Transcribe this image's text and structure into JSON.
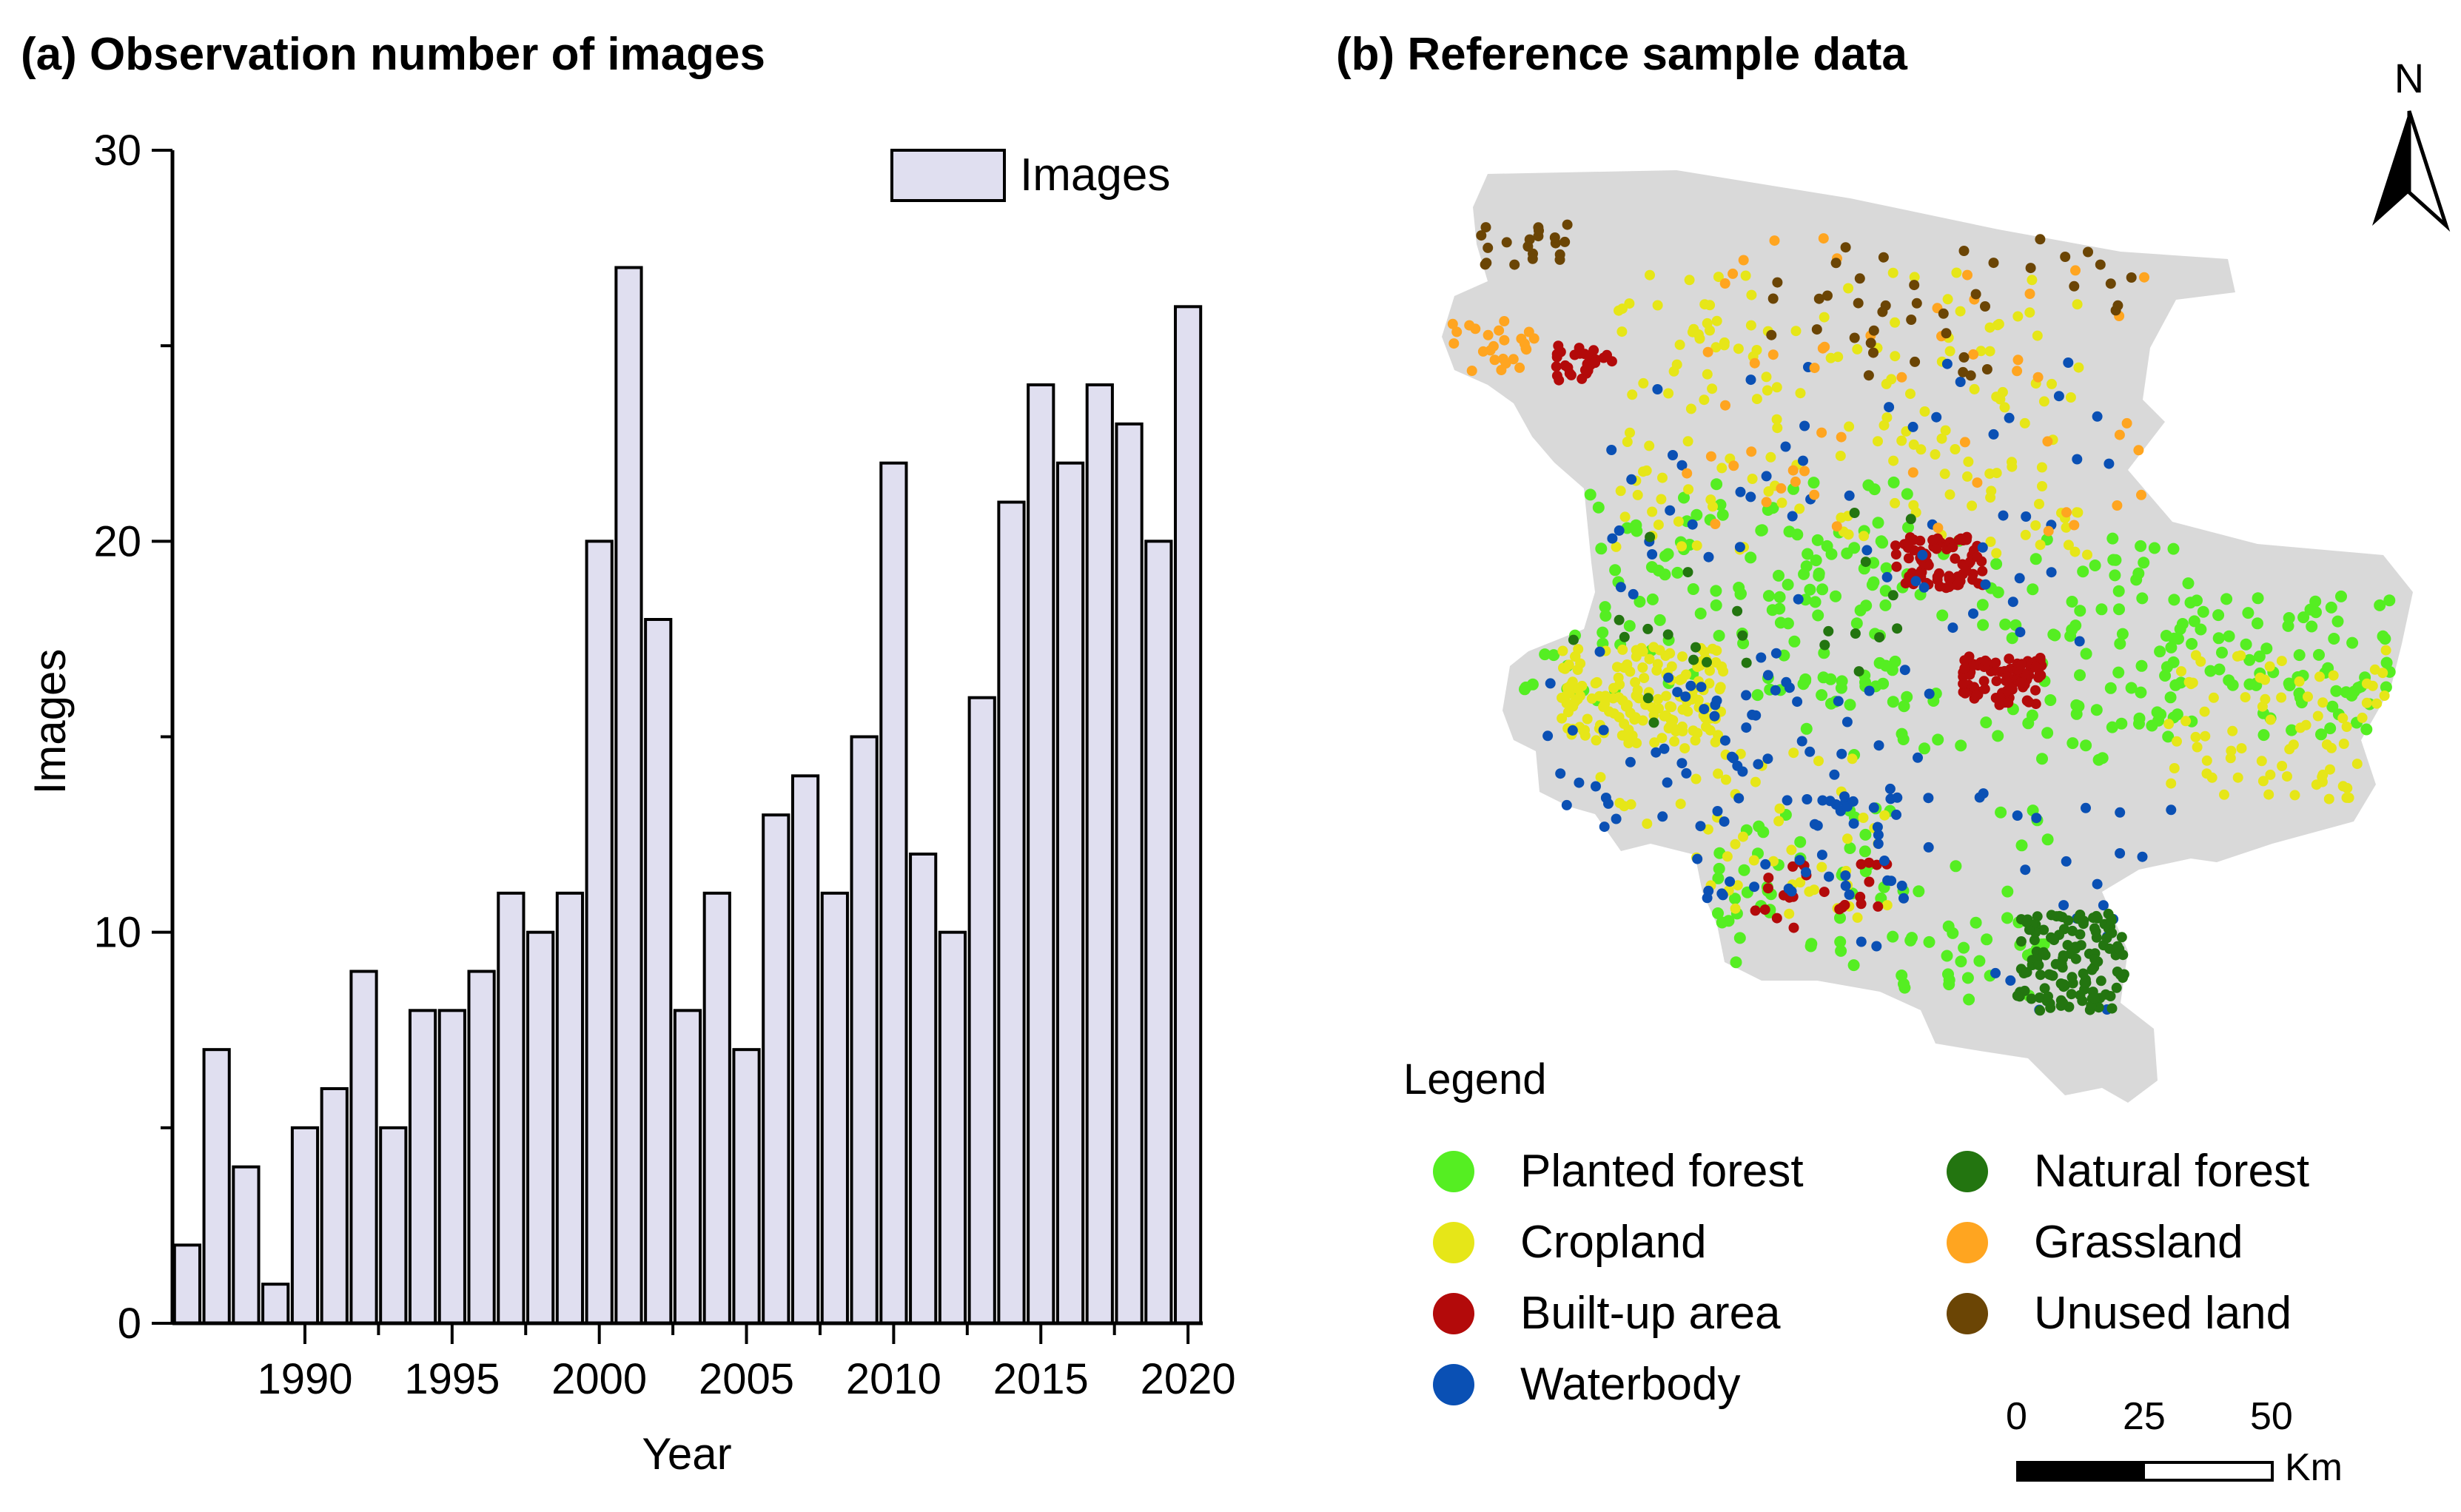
{
  "panel_a": {
    "title": "(a) Observation number of images"
  },
  "panel_b": {
    "title": "(b)  Reference sample data",
    "north_label": "N"
  },
  "chart_data": {
    "type": "bar",
    "title": "(a) Observation number of images",
    "xlabel": "Year",
    "ylabel": "Images",
    "ylim": [
      0,
      30
    ],
    "yticks": [
      "0",
      "10",
      "20",
      "30"
    ],
    "xtick_labels": [
      "1990",
      "1995",
      "2000",
      "2005",
      "2010",
      "2015",
      "2020"
    ],
    "legend": "Images",
    "legend_position": "top-right",
    "bar_color": "#e0dff0",
    "categories": [
      1986,
      1987,
      1988,
      1989,
      1990,
      1991,
      1992,
      1993,
      1994,
      1995,
      1996,
      1997,
      1998,
      1999,
      2000,
      2001,
      2002,
      2003,
      2004,
      2005,
      2006,
      2007,
      2008,
      2009,
      2010,
      2011,
      2012,
      2013,
      2014,
      2015,
      2016,
      2017,
      2018,
      2019,
      2020
    ],
    "values": [
      2,
      7,
      4,
      1,
      5,
      6,
      9,
      5,
      8,
      8,
      9,
      11,
      10,
      11,
      20,
      27,
      18,
      8,
      11,
      7,
      13,
      14,
      11,
      15,
      22,
      12,
      10,
      16,
      21,
      24,
      22,
      24,
      23,
      20,
      26
    ]
  },
  "map": {
    "legend_title": "Legend",
    "classes": [
      {
        "label": "Planted forest",
        "color": "#55ee22"
      },
      {
        "label": "Cropland",
        "color": "#e6e618"
      },
      {
        "label": "Built-up area",
        "color": "#b30a0a"
      },
      {
        "label": "Waterbody",
        "color": "#0a50b4"
      },
      {
        "label": "Natural forest",
        "color": "#237510"
      },
      {
        "label": "Grassland",
        "color": "#ffa520"
      },
      {
        "label": "Unused land",
        "color": "#6b4505"
      }
    ],
    "scale": {
      "labels": [
        "0",
        "25",
        "50"
      ],
      "unit": "Km"
    }
  }
}
